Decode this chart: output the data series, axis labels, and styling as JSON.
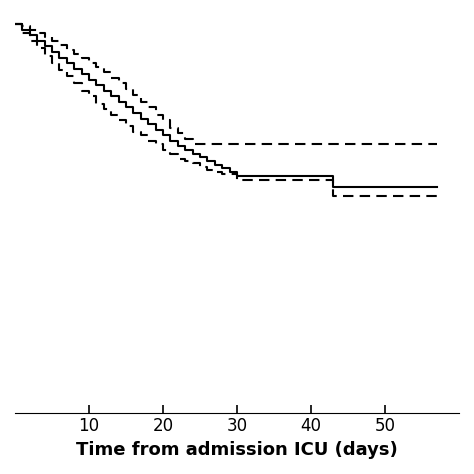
{
  "title": "",
  "xlabel": "Time from admission ICU (days)",
  "ylabel": "",
  "xlim": [
    0,
    60
  ],
  "ylim": [
    -1.1,
    1.05
  ],
  "xticks": [
    10,
    20,
    30,
    40,
    50
  ],
  "line_color": "#000000",
  "background_color": "#ffffff",
  "xlabel_fontsize": 13,
  "xlabel_fontweight": "bold",
  "km_x": [
    0,
    1,
    2,
    3,
    4,
    5,
    6,
    7,
    8,
    9,
    10,
    11,
    12,
    13,
    14,
    15,
    16,
    17,
    18,
    19,
    20,
    21,
    22,
    23,
    24,
    25,
    26,
    27,
    28,
    29,
    30,
    43,
    57
  ],
  "km_y": [
    1.0,
    0.97,
    0.94,
    0.91,
    0.88,
    0.85,
    0.82,
    0.79,
    0.76,
    0.73,
    0.7,
    0.67,
    0.64,
    0.61,
    0.58,
    0.55,
    0.52,
    0.49,
    0.46,
    0.43,
    0.4,
    0.37,
    0.34,
    0.32,
    0.3,
    0.28,
    0.26,
    0.24,
    0.22,
    0.2,
    0.18,
    0.12,
    0.12
  ],
  "ci_upper_x": [
    0,
    1,
    2,
    3,
    4,
    5,
    6,
    7,
    8,
    9,
    10,
    11,
    12,
    13,
    14,
    15,
    16,
    17,
    18,
    19,
    20,
    21,
    22,
    23,
    24,
    57
  ],
  "ci_upper_y": [
    1.0,
    0.99,
    0.97,
    0.95,
    0.93,
    0.91,
    0.89,
    0.86,
    0.84,
    0.82,
    0.79,
    0.77,
    0.74,
    0.71,
    0.68,
    0.65,
    0.62,
    0.58,
    0.55,
    0.51,
    0.48,
    0.44,
    0.41,
    0.38,
    0.35,
    0.35
  ],
  "ci_lower_x": [
    0,
    1,
    2,
    3,
    4,
    5,
    6,
    7,
    8,
    9,
    10,
    11,
    12,
    13,
    14,
    15,
    16,
    17,
    18,
    19,
    20,
    21,
    22,
    23,
    24,
    25,
    26,
    27,
    28,
    30,
    43,
    57
  ],
  "ci_lower_y": [
    1.0,
    0.95,
    0.91,
    0.87,
    0.83,
    0.79,
    0.75,
    0.72,
    0.68,
    0.64,
    0.61,
    0.57,
    0.54,
    0.51,
    0.48,
    0.45,
    0.42,
    0.4,
    0.37,
    0.35,
    0.32,
    0.3,
    0.27,
    0.26,
    0.25,
    0.23,
    0.21,
    0.2,
    0.19,
    0.16,
    0.07,
    0.07
  ]
}
